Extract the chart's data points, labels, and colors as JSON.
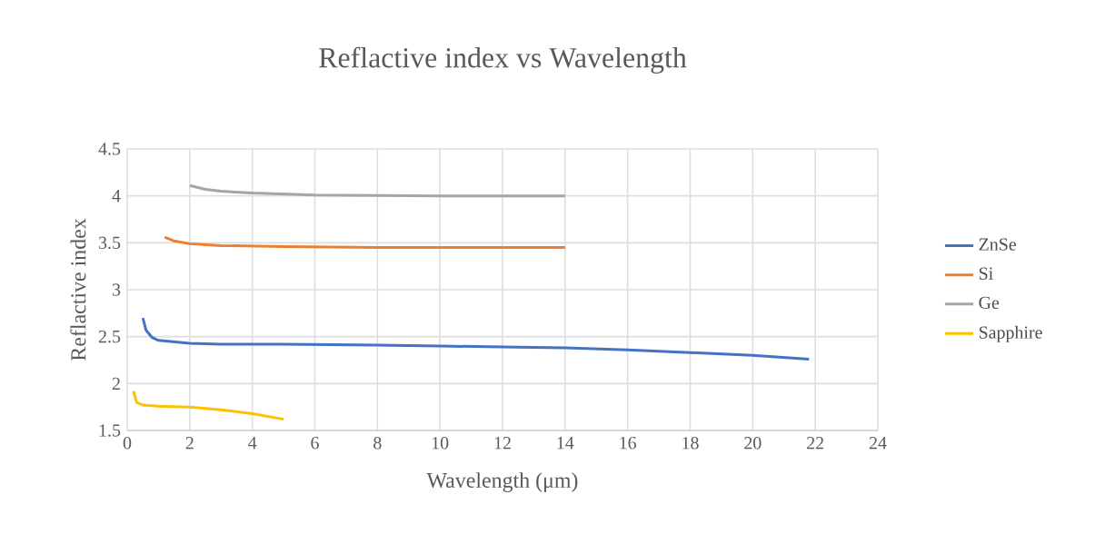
{
  "chart_data": {
    "type": "line",
    "title": "Reflactive index vs Wavelength",
    "xlabel": "Wavelength  (μm)",
    "ylabel": "Reflactive index",
    "xlim": [
      0,
      24
    ],
    "ylim": [
      1.5,
      4.5
    ],
    "xticks": [
      0,
      2,
      4,
      6,
      8,
      10,
      12,
      14,
      16,
      18,
      20,
      22,
      24
    ],
    "yticks": [
      1.5,
      2,
      2.5,
      3,
      3.5,
      4,
      4.5
    ],
    "grid": true,
    "legend": "right",
    "marker": "none",
    "line_style": "solid",
    "series": [
      {
        "name": "ZnSe",
        "color": "#4472c4",
        "x": [
          0.5,
          0.6,
          0.8,
          1,
          2,
          3,
          5,
          8,
          10,
          12,
          14,
          16,
          18,
          20,
          21.8
        ],
        "values": [
          2.7,
          2.57,
          2.49,
          2.46,
          2.43,
          2.42,
          2.42,
          2.41,
          2.4,
          2.39,
          2.38,
          2.36,
          2.33,
          2.3,
          2.26
        ]
      },
      {
        "name": "Si",
        "color": "#ed7d31",
        "x": [
          1.2,
          1.5,
          2,
          3,
          5,
          8,
          14
        ],
        "values": [
          3.56,
          3.52,
          3.49,
          3.47,
          3.46,
          3.45,
          3.45
        ]
      },
      {
        "name": "Ge",
        "color": "#a5a5a5",
        "x": [
          2,
          2.5,
          3,
          4,
          6,
          10,
          14
        ],
        "values": [
          4.11,
          4.07,
          4.05,
          4.03,
          4.01,
          4.0,
          4.0
        ]
      },
      {
        "name": "Sapphire",
        "color": "#ffc000",
        "x": [
          0.2,
          0.3,
          0.5,
          1,
          2,
          3,
          4,
          5
        ],
        "values": [
          1.92,
          1.8,
          1.77,
          1.76,
          1.75,
          1.72,
          1.68,
          1.62
        ]
      }
    ]
  }
}
